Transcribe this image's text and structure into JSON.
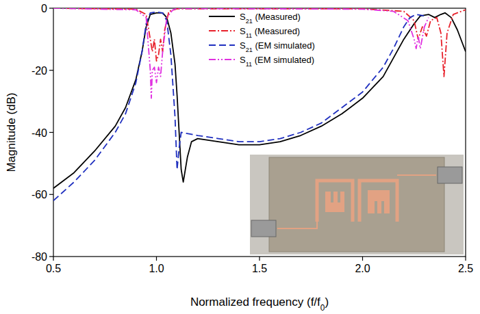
{
  "chart_data": {
    "type": "line",
    "x_label": "Normalized frequency (f/f0)",
    "y_label": "Magnitude (dB)",
    "xlim": [
      0.5,
      2.5
    ],
    "ylim": [
      -80,
      0
    ],
    "xticks": [
      0.5,
      {
        "value": 1,
        "label": "1.0"
      },
      1.5,
      {
        "value": 2,
        "label": "2.0"
      },
      2.5
    ],
    "yticks": [
      0,
      -20,
      -40,
      -60,
      -80
    ],
    "grid": false,
    "legend": "top",
    "series": [
      {
        "name": "S21 (Measured)",
        "color": "#000000",
        "line_style": "solid",
        "x": [
          0.5,
          0.6,
          0.7,
          0.8,
          0.85,
          0.9,
          0.93,
          0.95,
          0.97,
          1.0,
          1.03,
          1.05,
          1.07,
          1.09,
          1.1,
          1.11,
          1.12,
          1.13,
          1.15,
          1.17,
          1.2,
          1.3,
          1.4,
          1.5,
          1.6,
          1.7,
          1.8,
          1.9,
          2.0,
          2.1,
          2.15,
          2.2,
          2.25,
          2.28,
          2.32,
          2.35,
          2.38,
          2.4,
          2.43,
          2.46,
          2.5
        ],
        "values": [
          -58,
          -53,
          -46,
          -38,
          -32,
          -23,
          -14,
          -6,
          -2,
          -1.5,
          -1.5,
          -3,
          -8,
          -18,
          -28,
          -40,
          -52,
          -56,
          -48,
          -43,
          -42,
          -43,
          -44,
          -44,
          -43,
          -41,
          -38,
          -34,
          -29,
          -22,
          -16,
          -10,
          -5,
          -2.5,
          -2,
          -3,
          -2,
          -1.5,
          -3,
          -7,
          -14
        ]
      },
      {
        "name": "S11 (Measured)",
        "color": "#e8202a",
        "line_style": "dash-dot",
        "x": [
          0.5,
          0.9,
          0.95,
          0.97,
          0.98,
          0.99,
          1.0,
          1.01,
          1.02,
          1.03,
          1.04,
          1.06,
          1.1,
          2.0,
          2.2,
          2.25,
          2.27,
          2.29,
          2.31,
          2.33,
          2.36,
          2.38,
          2.395,
          2.41,
          2.44,
          2.5
        ],
        "values": [
          0,
          -0.3,
          -2,
          -10,
          -14,
          -10,
          -17,
          -15,
          -10,
          -14,
          -7,
          -1,
          -0.2,
          -0.2,
          -1,
          -4,
          -10,
          -6,
          -9,
          -4,
          -3,
          -8,
          -22,
          -8,
          -2,
          -0.5
        ]
      },
      {
        "name": "S21 (EM simulated)",
        "color": "#1f2fbf",
        "line_style": "dashed",
        "x": [
          0.5,
          0.6,
          0.7,
          0.8,
          0.85,
          0.9,
          0.93,
          0.95,
          0.97,
          1.0,
          1.03,
          1.05,
          1.07,
          1.09,
          1.1,
          1.11,
          1.12,
          1.2,
          1.3,
          1.4,
          1.5,
          1.6,
          1.7,
          1.8,
          1.9,
          2.0,
          2.1,
          2.15,
          2.2,
          2.23,
          2.26,
          2.3
        ],
        "values": [
          -62,
          -56,
          -49,
          -40,
          -34,
          -24,
          -14,
          -5,
          -1.5,
          -1.2,
          -1.5,
          -4,
          -15,
          -35,
          -52,
          -45,
          -40,
          -41,
          -42,
          -43,
          -43,
          -42,
          -40,
          -37,
          -32,
          -27,
          -19,
          -13,
          -6,
          -3,
          -2,
          -2.5
        ]
      },
      {
        "name": "S11 (EM simulated)",
        "color": "#e030e0",
        "line_style": "dash-dot-dot",
        "x": [
          0.5,
          0.9,
          0.95,
          0.97,
          0.975,
          0.98,
          0.99,
          1.0,
          1.01,
          1.02,
          1.03,
          1.05,
          1.08,
          1.1,
          2.0,
          2.15,
          2.22,
          2.25,
          2.26,
          2.27,
          2.28,
          2.3,
          2.32
        ],
        "values": [
          0,
          -0.5,
          -3,
          -20,
          -29,
          -20,
          -19,
          -24,
          -19,
          -22,
          -14,
          -3,
          -0.5,
          -0.1,
          -0.3,
          -1,
          -4,
          -10,
          -13,
          -9,
          -13,
          -6,
          -3
        ]
      }
    ]
  }
}
